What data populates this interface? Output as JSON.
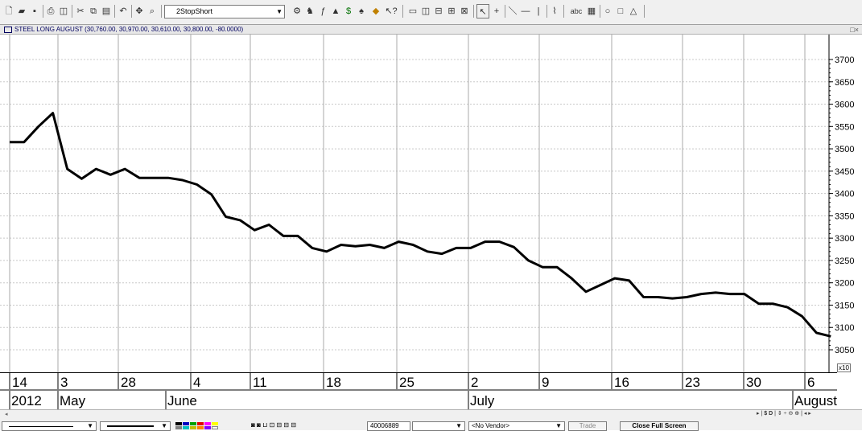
{
  "toolbar": {
    "icons": [
      "new-icon",
      "open-icon",
      "save-icon",
      "print-icon",
      "print-preview-icon",
      "cut-icon",
      "copy-icon",
      "paste-icon",
      "undo-icon",
      "crosshair-icon",
      "zoom-icon"
    ],
    "strategy_label": "2StopShort",
    "right_icons": [
      "select-arrow-icon",
      "crosshair-plus-icon",
      "trendline-icon",
      "horizontal-line-icon",
      "vertical-line-icon",
      "fibonacci-icon",
      "text-tool-icon",
      "rectangle-icon",
      "ellipse-icon",
      "triangle-icon"
    ],
    "text_tool_label": "abc"
  },
  "window": {
    "title": "STEEL LONG AUGUST (30,760.00, 30,970.00, 30,610.00, 30,800.00, -80.0000)",
    "controls": "□×"
  },
  "chart_data": {
    "type": "line",
    "title": "STEEL LONG AUGUST (30,760.00, 30,970.00, 30,610.00, 30,800.00, -80.0000)",
    "y_axis_labels": [
      "3700",
      "3650",
      "3600",
      "3550",
      "3500",
      "3450",
      "3400",
      "3350",
      "3300",
      "3250",
      "3200",
      "3150",
      "3100",
      "3050"
    ],
    "y_scale_note": "x10",
    "ylim": [
      3020,
      3730
    ],
    "grid": true,
    "week_labels": [
      "14",
      "3",
      "28",
      "4",
      "11",
      "18",
      "25",
      "2",
      "9",
      "16",
      "23",
      "30",
      "6"
    ],
    "month_labels": [
      "2012",
      "May",
      "June",
      "July",
      "August"
    ],
    "series": [
      {
        "values": [
          3515,
          3515,
          3550,
          3580,
          3455,
          3433,
          3455,
          3442,
          3455,
          3435,
          3435,
          3435,
          3430,
          3420,
          3398,
          3348,
          3340,
          3318,
          3330,
          3305,
          3305,
          3278,
          3270,
          3285,
          3282,
          3285,
          3278,
          3292,
          3285,
          3270,
          3265,
          3278,
          3278,
          3292,
          3292,
          3280,
          3250,
          3235,
          3235,
          3210,
          3180,
          3195,
          3210,
          3205,
          3168,
          3168,
          3165,
          3168,
          3175,
          3178,
          3175,
          3175,
          3153,
          3153,
          3145,
          3125,
          3088,
          3080
        ]
      }
    ]
  },
  "bottom": {
    "trade_label": "Trade",
    "close_full_screen_label": "Close Full Screen",
    "account_value": "40006889",
    "vendor_value": "<No Vendor>",
    "nav_text": "$ D"
  }
}
